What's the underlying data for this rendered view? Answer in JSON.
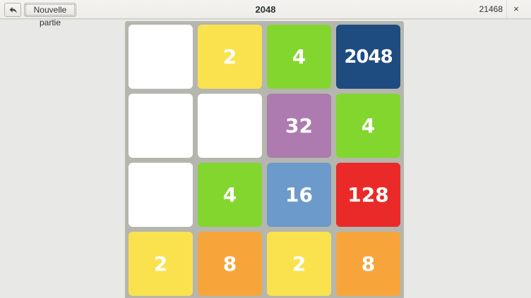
{
  "window": {
    "title": "2048",
    "score": "21468",
    "close_label": "×"
  },
  "toolbar": {
    "undo_icon": "undo-arrow-icon",
    "new_game_label": "Nouvelle partie"
  },
  "board": {
    "rows": [
      [
        "",
        "2",
        "4",
        "2048"
      ],
      [
        "",
        "",
        "32",
        "4"
      ],
      [
        "",
        "4",
        "16",
        "128"
      ],
      [
        "2",
        "8",
        "2",
        "8"
      ]
    ]
  },
  "colors": {
    "header_bg": "#F1F0EE",
    "content_bg": "#E8E8E6",
    "board_bg": "#B5B6AE",
    "tile_text": "#FFFFFF",
    "tile_empty": "#FFFFFF",
    "tile_2": "#FAE24E",
    "tile_4": "#83D62E",
    "tile_8": "#F7A53B",
    "tile_16": "#6C9ACB",
    "tile_32": "#AD7BAF",
    "tile_128": "#E92A28",
    "tile_2048": "#1E4C80"
  }
}
